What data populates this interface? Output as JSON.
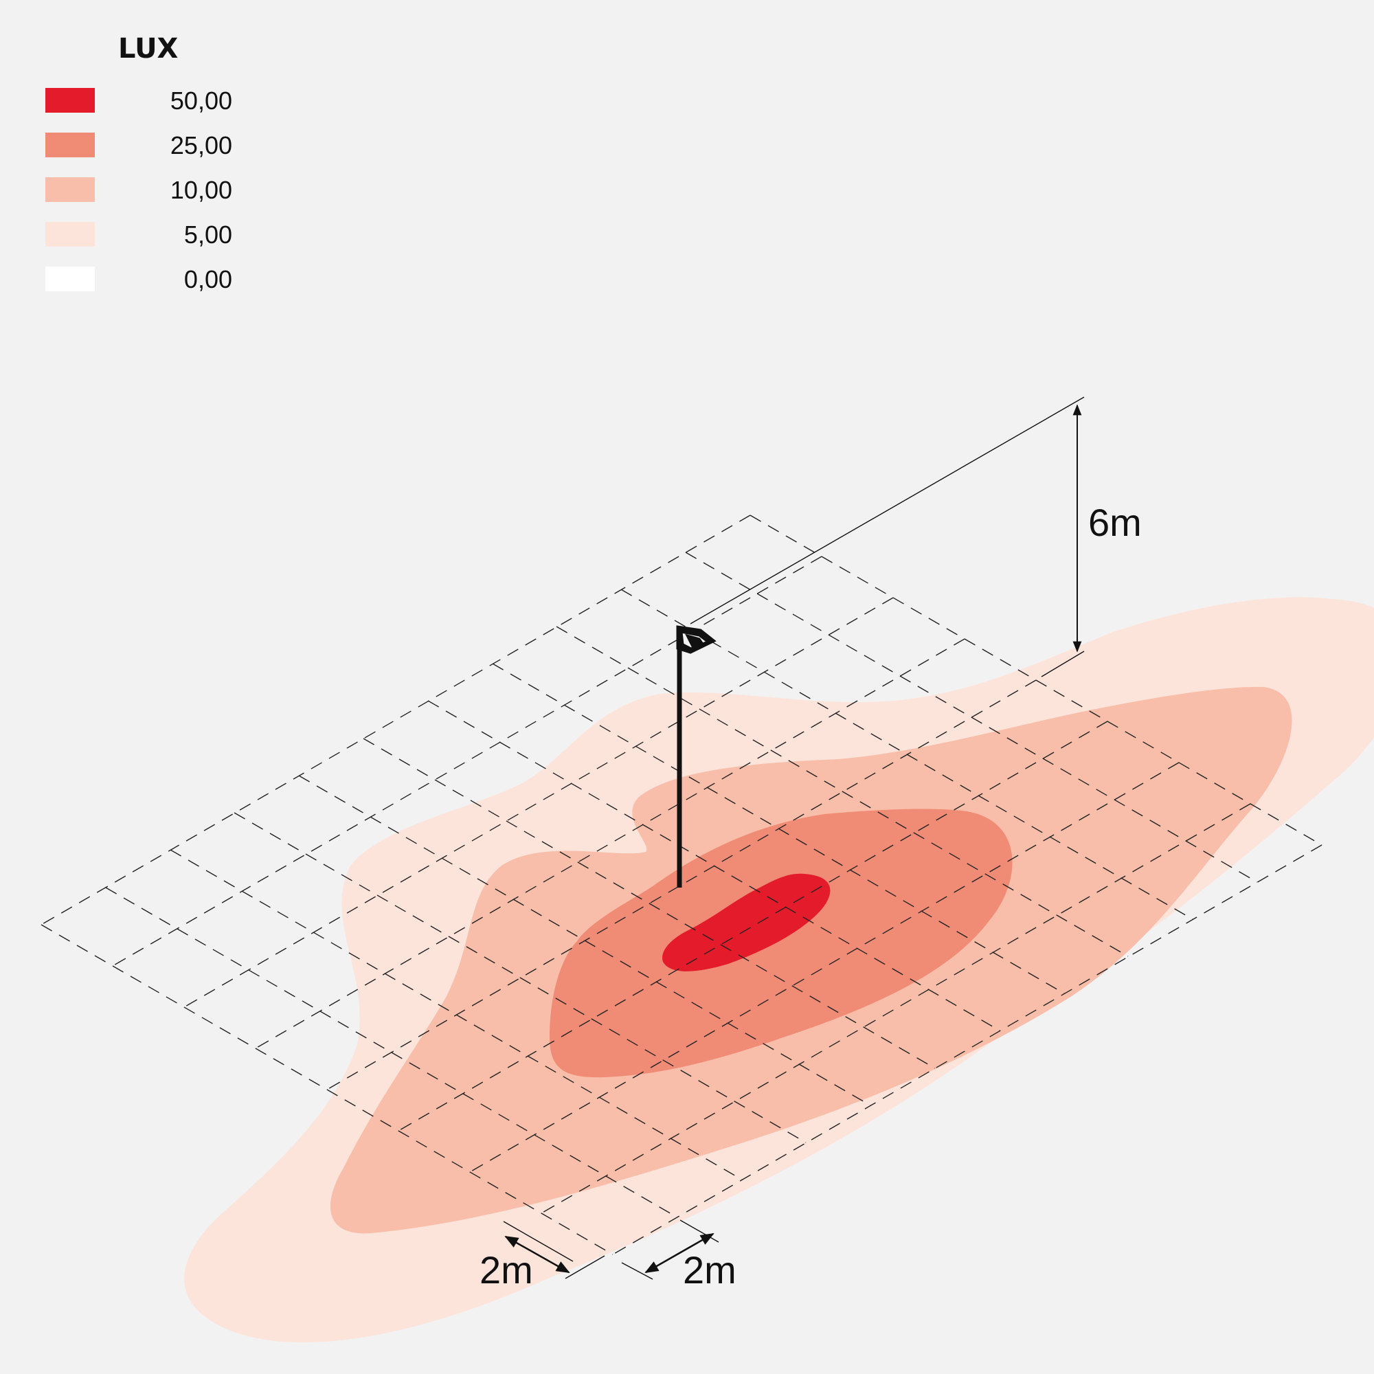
{
  "legend": {
    "title": "LUX",
    "items": [
      {
        "value": "50,00",
        "color": "#e31b2b"
      },
      {
        "value": "25,00",
        "color": "#f08b76"
      },
      {
        "value": "10,00",
        "color": "#f8bea9"
      },
      {
        "value": "5,00",
        "color": "#fde4db"
      },
      {
        "value": "0,00",
        "color": "#ffffff"
      }
    ]
  },
  "dimensions": {
    "height": "6m",
    "grid_spacing_a": "2m",
    "grid_spacing_b": "2m"
  }
}
